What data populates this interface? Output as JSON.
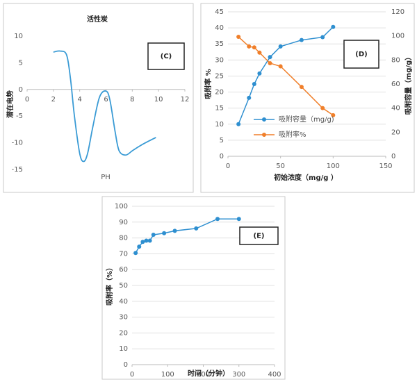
{
  "chart_data": [
    {
      "type": "line",
      "title": "活性炭",
      "annotation": "(C)",
      "x_label": "PH",
      "y_label": "潜在电势",
      "x": [
        2,
        2.5,
        3,
        3.3,
        3.6,
        4,
        4.3,
        4.6,
        5,
        5.5,
        6,
        6.3,
        6.7,
        7,
        7.5,
        8,
        8.5,
        9,
        9.8
      ],
      "values": [
        7,
        7.2,
        6.5,
        2,
        -5,
        -12,
        -13.5,
        -12,
        -7,
        -1.5,
        -0.3,
        -2,
        -8,
        -11.5,
        -12.3,
        -11.5,
        -10.7,
        -10,
        -9
      ],
      "color": "#3a9bd5",
      "smooth": true,
      "markers": false,
      "grid": false,
      "xlim": [
        0,
        12
      ],
      "xticks": [
        0,
        2,
        4,
        6,
        8,
        10,
        12
      ],
      "ylim": [
        -15,
        10
      ],
      "yticks": [
        -15,
        -10,
        -5,
        0,
        5,
        10
      ]
    },
    {
      "type": "line",
      "annotation": "(D)",
      "x_label": "初始浓度（mg/g ）",
      "y_label": "吸附率 %",
      "y2_label": "吸附容量（mg/g）",
      "x": [
        10,
        20,
        25,
        30,
        40,
        50,
        70,
        90,
        100
      ],
      "series": [
        {
          "name": "吸附容量（mg/g)",
          "color": "#2e8fd0",
          "values": [
            10,
            18.2,
            22.5,
            25.8,
            30.9,
            34.2,
            36.2,
            37.1,
            40.3
          ]
        },
        {
          "name": "吸附率%",
          "color": "#f07f2a",
          "axis": "y2",
          "values": [
            99.2,
            91.2,
            90.4,
            86.1,
            77.3,
            74.7,
            57.6,
            40,
            34.1
          ]
        }
      ],
      "smooth": false,
      "markers": true,
      "grid": true,
      "xlim": [
        0,
        150
      ],
      "xticks": [
        0,
        50,
        100,
        150
      ],
      "ylim": [
        0,
        45
      ],
      "yticks": [
        0,
        5,
        10,
        15,
        20,
        25,
        30,
        35,
        40,
        45
      ],
      "y2lim": [
        0,
        120
      ],
      "y2ticks": [
        0,
        20,
        40,
        60,
        80,
        100,
        120
      ]
    },
    {
      "type": "line",
      "annotation": "(E)",
      "x_label": "时间（分钟）",
      "y_label": "吸附率（%）",
      "x": [
        10,
        20,
        30,
        40,
        50,
        60,
        90,
        120,
        180,
        240,
        300
      ],
      "values": [
        70.5,
        74.5,
        77.5,
        78.3,
        78.3,
        82,
        83,
        84.5,
        86,
        92,
        92
      ],
      "color": "#2e8fd0",
      "smooth": false,
      "markers": true,
      "grid": true,
      "xlim": [
        0,
        400
      ],
      "xticks": [
        0,
        100,
        200,
        300,
        400
      ],
      "ylim": [
        0,
        100
      ],
      "yticks": [
        0,
        10,
        20,
        30,
        40,
        50,
        60,
        70,
        80,
        90,
        100
      ]
    }
  ]
}
